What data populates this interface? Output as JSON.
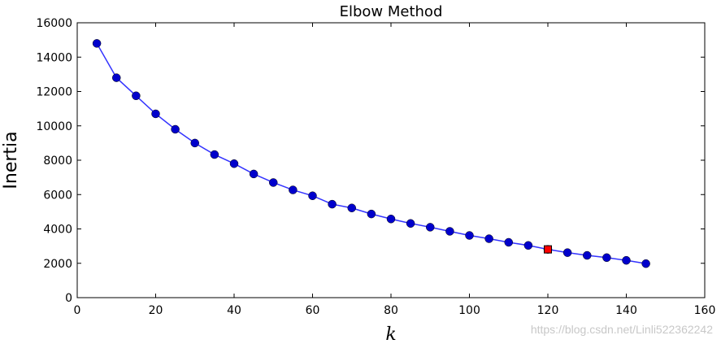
{
  "chart_data": {
    "type": "line",
    "title": "Elbow Method",
    "xlabel": "k",
    "ylabel": "Inertia",
    "xlim": [
      0,
      160
    ],
    "ylim": [
      0,
      16000
    ],
    "xticks": [
      0,
      20,
      40,
      60,
      80,
      100,
      120,
      140,
      160
    ],
    "yticks": [
      0,
      2000,
      4000,
      6000,
      8000,
      10000,
      12000,
      14000,
      16000
    ],
    "grid": false,
    "series": [
      {
        "x": [
          5,
          10,
          15,
          20,
          25,
          30,
          35,
          40,
          45,
          50,
          55,
          60,
          65,
          70,
          75,
          80,
          85,
          90,
          95,
          100,
          105,
          110,
          115,
          120,
          125,
          130,
          135,
          140,
          145
        ],
        "y": [
          14800,
          12800,
          11750,
          10700,
          9800,
          9000,
          8330,
          7800,
          7200,
          6700,
          6270,
          5930,
          5440,
          5220,
          4870,
          4580,
          4320,
          4100,
          3860,
          3620,
          3430,
          3220,
          3040,
          2810,
          2620,
          2460,
          2330,
          2170,
          1980
        ],
        "line_color": "#3333ff",
        "marker_color": "#0000cc"
      }
    ],
    "highlight": {
      "x": 120,
      "y": 2810,
      "marker": "square",
      "color": "#ff0000"
    }
  },
  "watermark": "https://blog.csdn.net/Linli522362242"
}
